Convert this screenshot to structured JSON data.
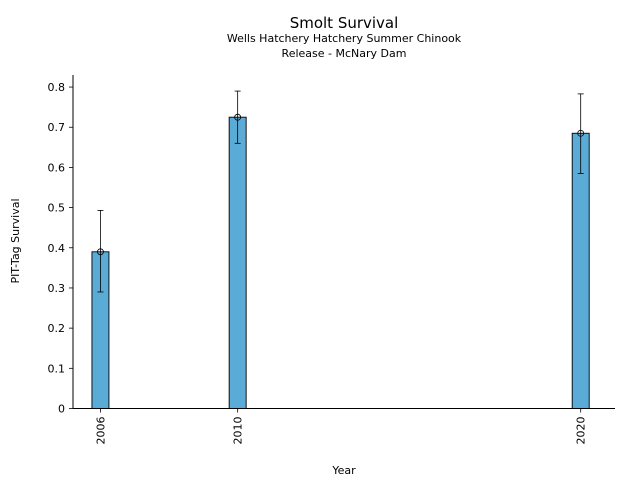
{
  "chart_data": {
    "type": "bar",
    "title": "Smolt Survival",
    "subtitle_lines": [
      "Wells Hatchery Hatchery Summer Chinook",
      "Release - McNary Dam"
    ],
    "xlabel": "Year",
    "ylabel": "PIT-Tag Survival",
    "x": [
      2006,
      2010,
      2020
    ],
    "x_tick_labels": [
      "2006",
      "2010",
      "2020"
    ],
    "values": [
      0.39,
      0.725,
      0.685
    ],
    "error_lower": [
      0.29,
      0.66,
      0.585
    ],
    "error_upper": [
      0.493,
      0.79,
      0.783
    ],
    "xlim": [
      2005.2,
      2021.0
    ],
    "ylim": [
      0,
      0.83
    ],
    "y_ticks": [
      0,
      0.1,
      0.2,
      0.3,
      0.4,
      0.5,
      0.6,
      0.7,
      0.8
    ],
    "y_tick_labels": [
      "0",
      "0.1",
      "0.2",
      "0.3",
      "0.4",
      "0.5",
      "0.6",
      "0.7",
      "0.8"
    ],
    "bar_color": "#5aabd6",
    "edge_color": "#000000",
    "grid": false,
    "legend": "none"
  }
}
